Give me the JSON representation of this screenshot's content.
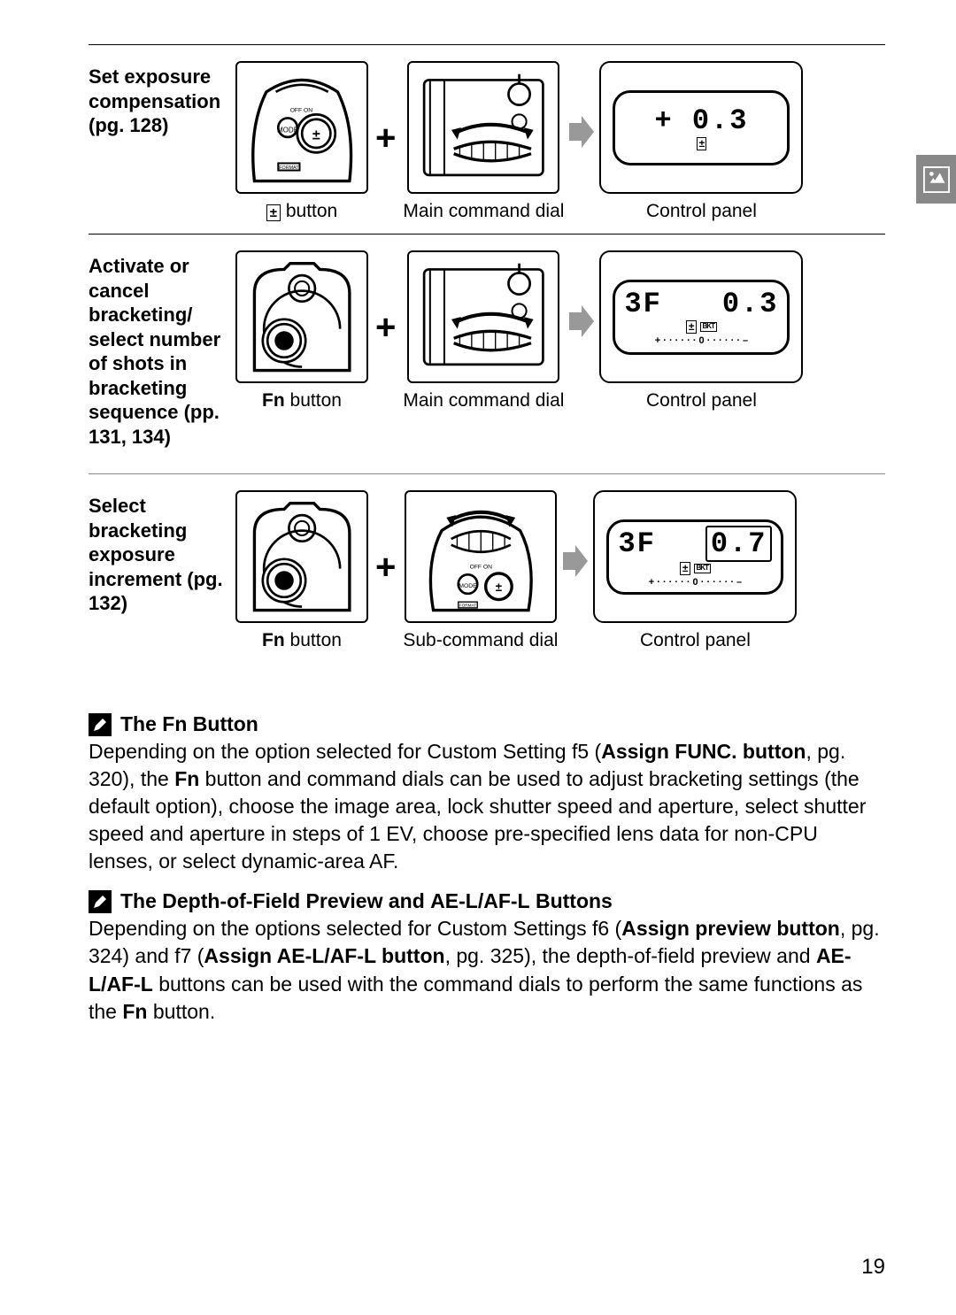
{
  "page_number": "19",
  "rows": [
    {
      "label_html": "<b>Set exposure compensation (pg. 128)</b>",
      "step1_caption_prefix_icon": "±",
      "step1_caption": " button",
      "step2_caption": "Main command dial",
      "panel_caption": "Control panel",
      "lcd_main": "+ 0.3",
      "lcd_sub_icon": "±"
    },
    {
      "label_html": "<b>Activate or cancel bracketing/ select number of shots in bracketing sequence (pp. 131, 134)</b>",
      "step1_caption_bold": "Fn",
      "step1_caption": " button",
      "step2_caption": "Main command dial",
      "panel_caption": "Control panel",
      "lcd_left": "3F",
      "lcd_right": "0.3",
      "lcd_sub": "+ · · · · · · 0 · · · · · · –",
      "lcd_sub_icons": "± BKT"
    },
    {
      "label_html": "<b>Select bracketing exposure increment (pg. 132)</b>",
      "step1_caption_bold": "Fn",
      "step1_caption": " button",
      "step2_caption": "Sub-command dial",
      "panel_caption": "Control panel",
      "lcd_left": "3F",
      "lcd_right_boxed": "0.7",
      "lcd_sub": "+ · · · · · · 0 · · · · · · –",
      "lcd_sub_icons": "± BKT"
    }
  ],
  "notes": [
    {
      "title": "The Fn Button",
      "title_uses_condensed_word": "Fn",
      "body_parts": [
        "Depending on the option selected for Custom Setting f5 (",
        {
          "b": "Assign FUNC. button"
        },
        ", pg. 320), the ",
        {
          "cond": "Fn"
        },
        " button and command dials can be used to adjust bracketing settings (the default option), choose the image area, lock shutter speed and aperture, select shutter speed and aperture in steps of 1 EV, choose pre-specified lens data for non-CPU lenses, or select dynamic-area AF."
      ]
    },
    {
      "title": "The Depth-of-Field Preview and AE-L/AF-L Buttons",
      "title_condensed_segment": "AE-L/AF-L",
      "body_parts": [
        "Depending on the options selected for Custom Settings f6 (",
        {
          "b": "Assign preview button"
        },
        ", pg. 324) and f7 (",
        {
          "b": "Assign AE-L/AF-L button"
        },
        ", pg. 325), the depth-of-field preview and ",
        {
          "cond": "AE-L/AF-L"
        },
        " buttons can be used with the command dials to perform the same functions as the ",
        {
          "cond": "Fn"
        },
        " button."
      ]
    }
  ]
}
